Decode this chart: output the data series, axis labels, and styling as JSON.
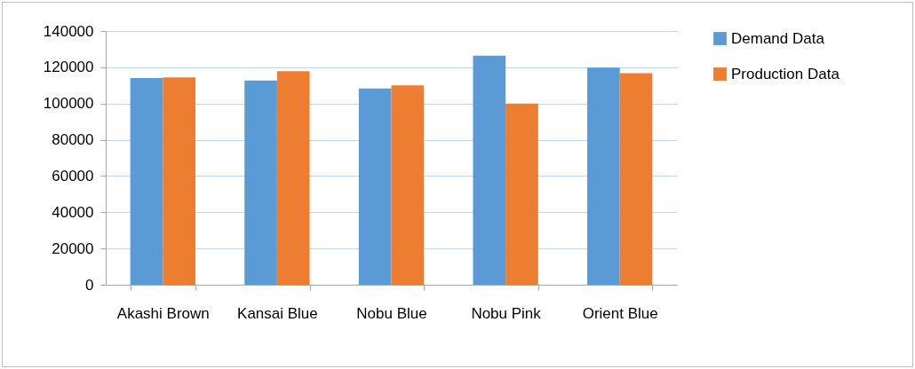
{
  "chart_data": {
    "type": "bar",
    "categories": [
      "Akashi Brown",
      "Kansai Blue",
      "Nobu Blue",
      "Nobu Pink",
      "Orient Blue"
    ],
    "series": [
      {
        "name": "Demand Data",
        "color": "#5b9bd5",
        "values": [
          114000,
          112700,
          108300,
          126400,
          119800
        ]
      },
      {
        "name": "Production Data",
        "color": "#ed7d31",
        "values": [
          114400,
          117800,
          110000,
          100000,
          116700
        ]
      }
    ],
    "ylim": [
      0,
      140000
    ],
    "yticks": [
      0,
      20000,
      40000,
      60000,
      80000,
      100000,
      120000,
      140000
    ],
    "grid": "y",
    "legend": "right"
  }
}
